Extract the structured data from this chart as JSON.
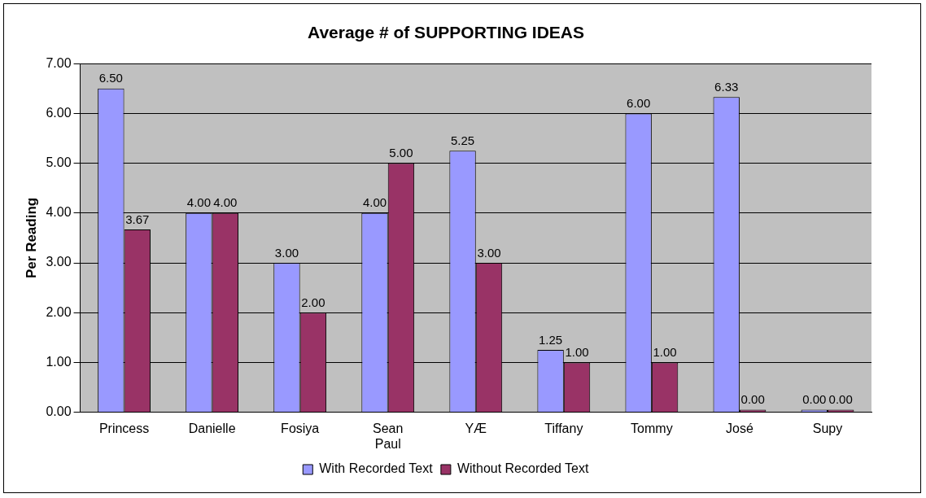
{
  "chart_data": {
    "type": "bar",
    "title": "Average # of SUPPORTING IDEAS",
    "ylabel": "Per Reading",
    "categories": [
      "Princess",
      "Danielle",
      "Fosiya",
      "Sean Paul",
      "YÆ",
      "Tiffany",
      "Tommy",
      "José",
      "Supy"
    ],
    "series": [
      {
        "name": "With Recorded Text",
        "color": "#9999ff",
        "values": [
          6.5,
          4,
          3,
          4,
          5.25,
          1.25,
          6,
          6.33,
          0
        ],
        "value_labels": [
          "6.50",
          "4.00",
          "3.00",
          "4.00",
          "5.25",
          "1.25",
          "6.00",
          "6.33",
          "0.00"
        ]
      },
      {
        "name": "Without Recorded Text",
        "color": "#993366",
        "values": [
          3.67,
          4,
          2,
          5,
          3,
          1,
          1,
          0,
          0
        ],
        "value_labels": [
          "3.67",
          "4.00",
          "2.00",
          "5.00",
          "3.00",
          "1.00",
          "1.00",
          "0.00",
          "0.00"
        ]
      }
    ],
    "ylim": [
      0,
      7
    ],
    "yticks": [
      {
        "value": 0,
        "label": "0.00"
      },
      {
        "value": 1,
        "label": "1.00"
      },
      {
        "value": 2,
        "label": "2.00"
      },
      {
        "value": 3,
        "label": "3.00"
      },
      {
        "value": 4,
        "label": "4.00"
      },
      {
        "value": 5,
        "label": "5.00"
      },
      {
        "value": 6,
        "label": "6.00"
      },
      {
        "value": 7,
        "label": "7.00"
      }
    ],
    "grid": "y",
    "legend": "bottom"
  }
}
